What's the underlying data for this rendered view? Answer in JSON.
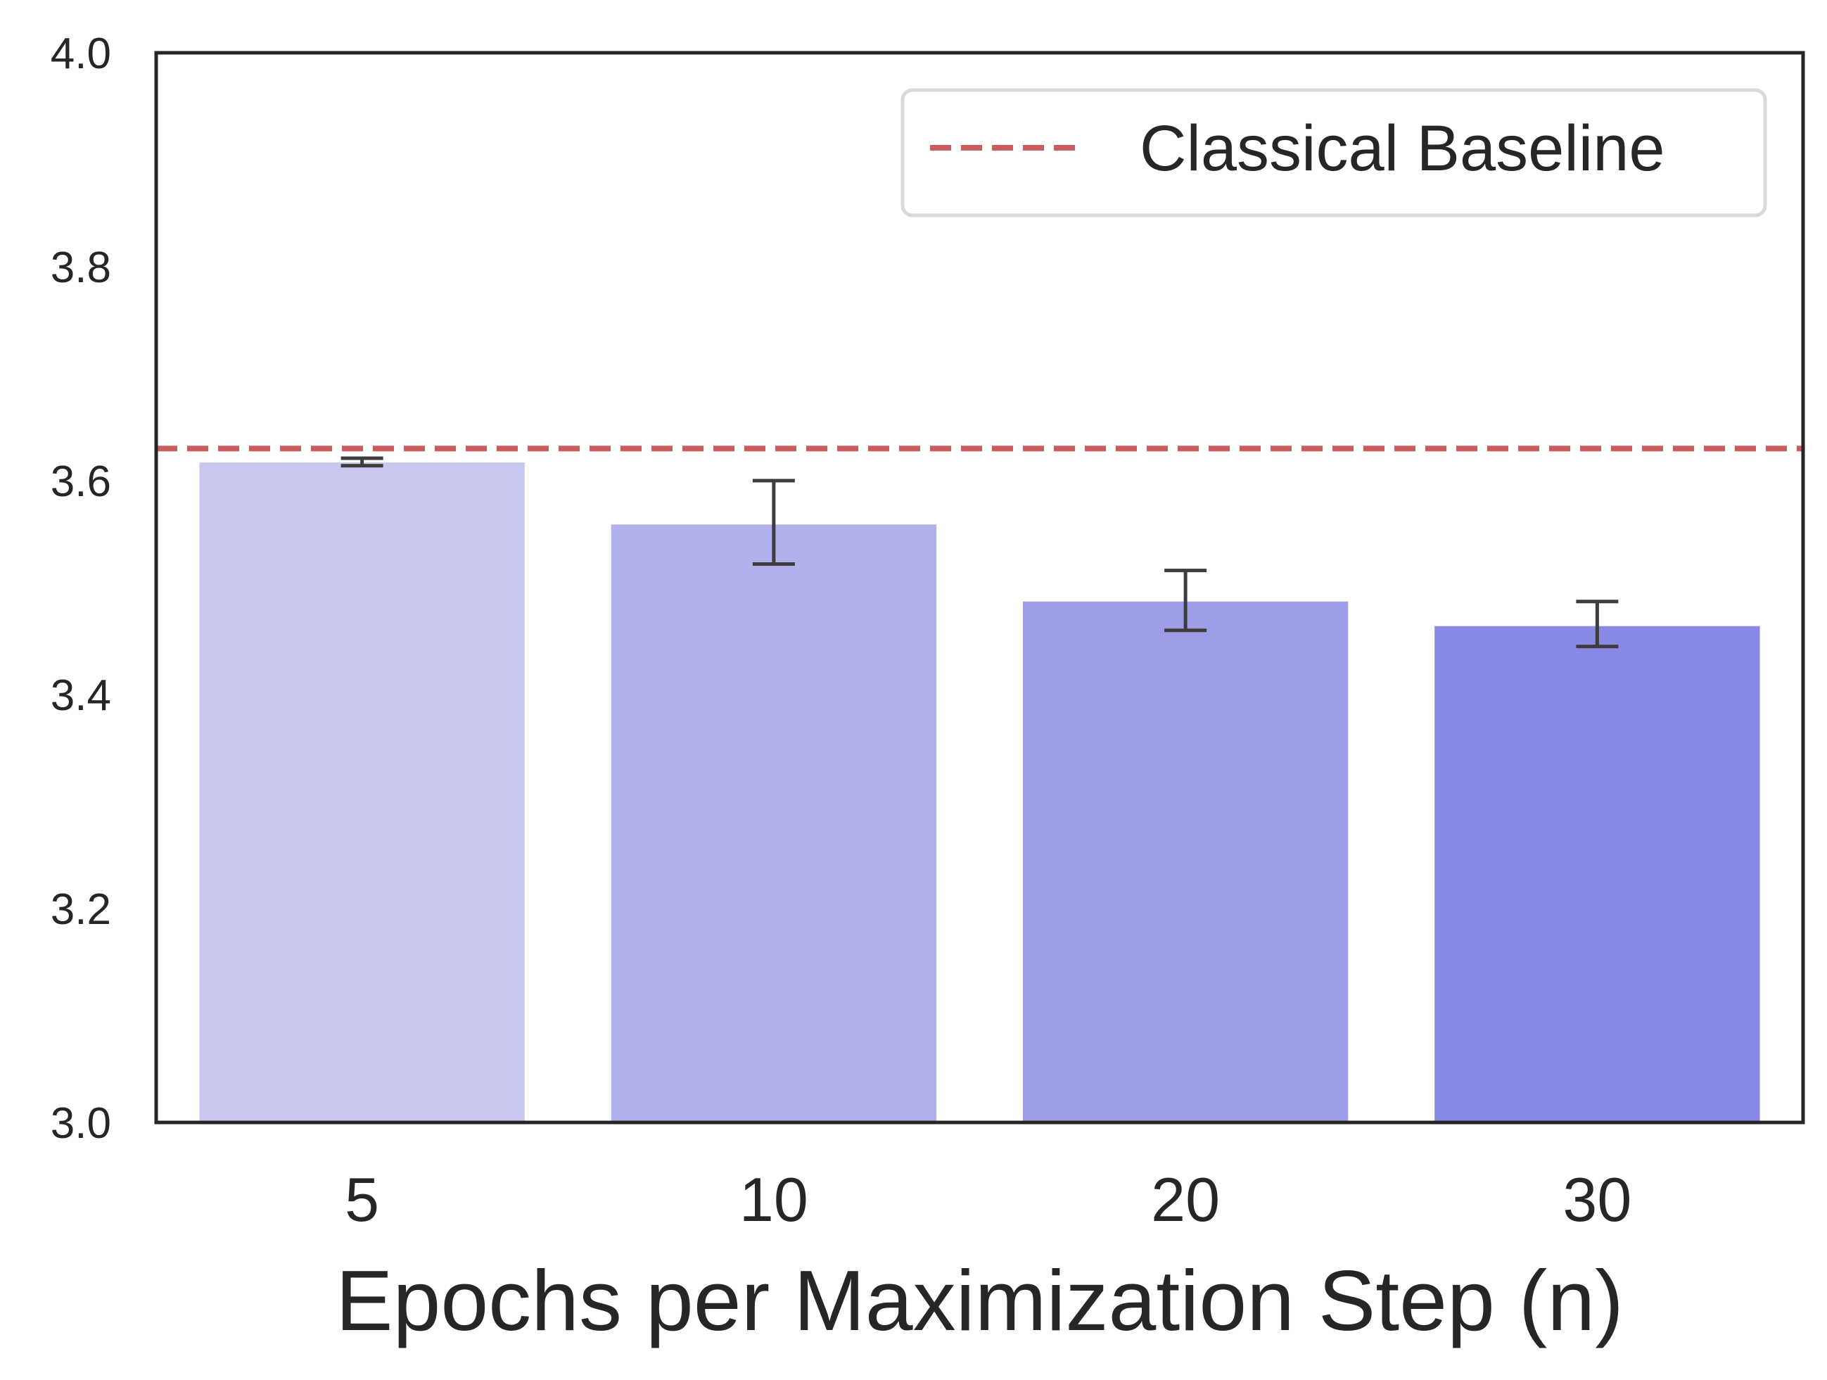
{
  "chart_data": {
    "type": "bar",
    "title": "",
    "xlabel": "Epochs per Maximization Step (n)",
    "ylabel": "",
    "categories": [
      "5",
      "10",
      "20",
      "30"
    ],
    "values": [
      3.617,
      3.559,
      3.487,
      3.464
    ],
    "errors": [
      [
        3.614,
        3.621
      ],
      [
        3.522,
        3.6
      ],
      [
        3.46,
        3.516
      ],
      [
        3.445,
        3.487
      ]
    ],
    "bar_colors": [
      "#c8c7ef",
      "#b1b1eb",
      "#9e9ee8",
      "#8888e5"
    ],
    "ylim": [
      3.0,
      4.0
    ],
    "yticks": [
      "3.0",
      "3.2",
      "3.4",
      "3.6",
      "3.8",
      "4.0"
    ],
    "ytick_values": [
      3.0,
      3.2,
      3.4,
      3.6,
      3.8,
      4.0
    ],
    "baseline": {
      "label": "Classical Baseline",
      "value": 3.63,
      "color": "#cd5c5c",
      "style": "dashed"
    },
    "legend": {
      "placement": "top-right",
      "entries": [
        "Classical Baseline"
      ]
    },
    "grid": false
  }
}
